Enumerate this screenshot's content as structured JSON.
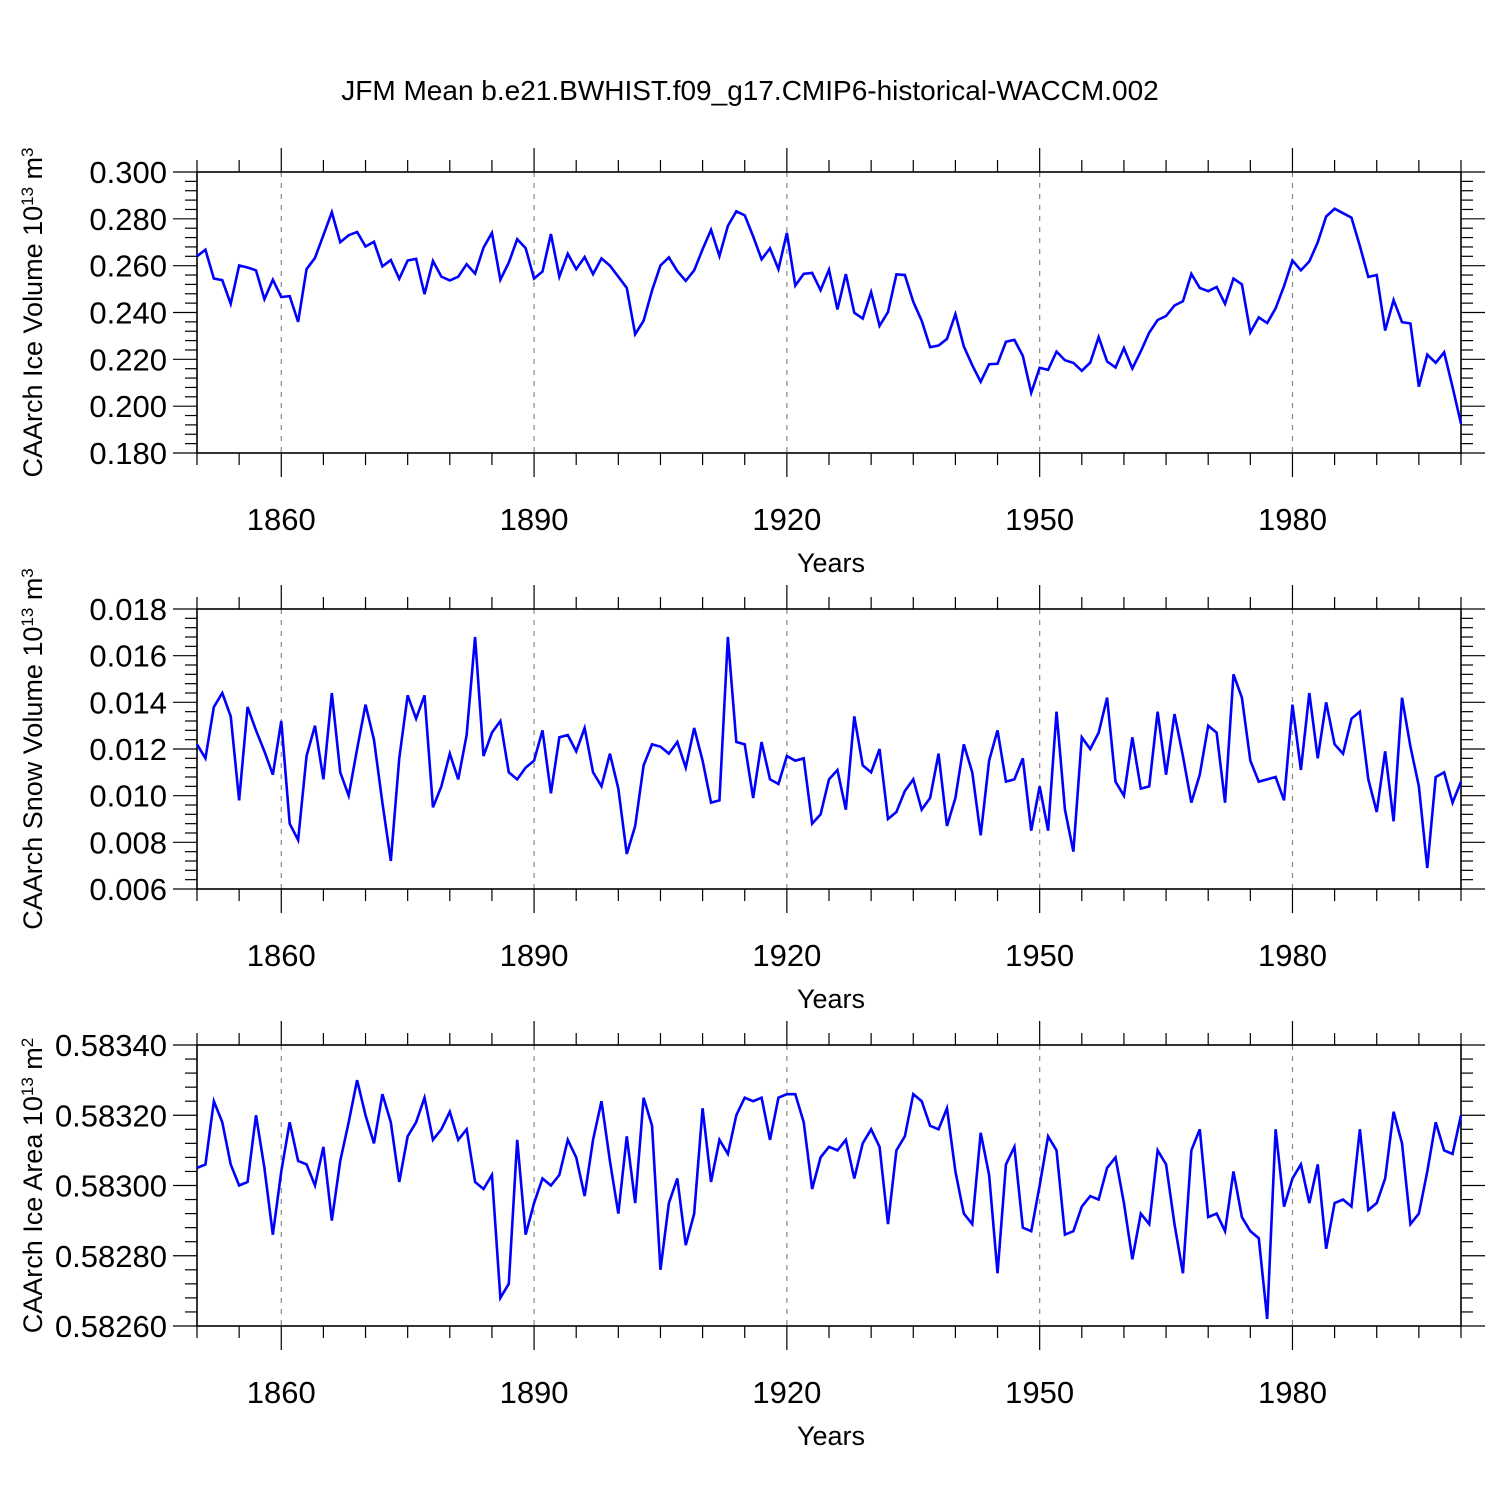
{
  "chart_data": [
    {
      "type": "line",
      "title": "JFM Mean b.e21.BWHIST.f09_g17.CMIP6-historical-WACCM.002",
      "ylabel": "CAArch Ice Volume 10",
      "ylabel_exp": "13",
      "ylabel_unit": " m",
      "ylabel_unit_exp": "3",
      "xlabel": "Years",
      "xlim": [
        1850,
        2000
      ],
      "ylim": [
        0.18,
        0.3
      ],
      "yticks": [
        "0.180",
        "0.200",
        "0.220",
        "0.240",
        "0.260",
        "0.280",
        "0.300"
      ],
      "xticks": [
        "1860",
        "1890",
        "1920",
        "1950",
        "1980"
      ],
      "color": "#0000ff",
      "series": [
        {
          "name": "CAArch Ice Volume",
          "x_start": 1850,
          "values": [
            0.264,
            0.2668,
            0.2545,
            0.2538,
            0.2437,
            0.2601,
            0.2592,
            0.258,
            0.2457,
            0.254,
            0.2466,
            0.247,
            0.236,
            0.2585,
            0.2633,
            0.273,
            0.2828,
            0.27,
            0.273,
            0.2744,
            0.2682,
            0.2702,
            0.2597,
            0.2624,
            0.2544,
            0.2622,
            0.2629,
            0.2478,
            0.262,
            0.2553,
            0.2537,
            0.2553,
            0.2606,
            0.2566,
            0.2677,
            0.274,
            0.254,
            0.2613,
            0.2713,
            0.2675,
            0.2545,
            0.2575,
            0.2735,
            0.2553,
            0.2651,
            0.2585,
            0.2637,
            0.2564,
            0.2631,
            0.26,
            0.2553,
            0.2505,
            0.2307,
            0.2365,
            0.2494,
            0.2601,
            0.2635,
            0.2577,
            0.2535,
            0.258,
            0.267,
            0.2753,
            0.2641,
            0.277,
            0.2832,
            0.2815,
            0.2725,
            0.2627,
            0.2674,
            0.2585,
            0.274,
            0.2515,
            0.2565,
            0.2569,
            0.2495,
            0.2583,
            0.2413,
            0.2564,
            0.2399,
            0.2374,
            0.2487,
            0.2343,
            0.2402,
            0.2563,
            0.256,
            0.2446,
            0.2365,
            0.2252,
            0.2259,
            0.2287,
            0.2393,
            0.2255,
            0.2175,
            0.2104,
            0.2179,
            0.2181,
            0.2275,
            0.2283,
            0.2215,
            0.2057,
            0.2164,
            0.2155,
            0.2233,
            0.2196,
            0.2185,
            0.2151,
            0.2186,
            0.2295,
            0.2191,
            0.2165,
            0.2248,
            0.2161,
            0.2234,
            0.2314,
            0.2368,
            0.2385,
            0.243,
            0.2448,
            0.2565,
            0.2505,
            0.2491,
            0.2509,
            0.2437,
            0.2545,
            0.252,
            0.2315,
            0.2379,
            0.2355,
            0.2418,
            0.2513,
            0.2622,
            0.258,
            0.2618,
            0.27,
            0.281,
            0.2843,
            0.2824,
            0.2805,
            0.2684,
            0.2552,
            0.256,
            0.2323,
            0.2453,
            0.2359,
            0.2353,
            0.2083,
            0.222,
            0.2185,
            0.223,
            0.2081,
            0.1925
          ]
        }
      ]
    },
    {
      "type": "line",
      "title": "",
      "ylabel": "CAArch Snow Volume 10",
      "ylabel_exp": "13",
      "ylabel_unit": " m",
      "ylabel_unit_exp": "3",
      "xlabel": "Years",
      "xlim": [
        1850,
        2000
      ],
      "ylim": [
        0.006,
        0.018
      ],
      "yticks": [
        "0.006",
        "0.008",
        "0.010",
        "0.012",
        "0.014",
        "0.016",
        "0.018"
      ],
      "xticks": [
        "1860",
        "1890",
        "1920",
        "1950",
        "1980"
      ],
      "color": "#0000ff",
      "series": [
        {
          "name": "CAArch Snow Volume",
          "x_start": 1850,
          "values": [
            0.0122,
            0.0116,
            0.0138,
            0.0144,
            0.0134,
            0.0098,
            0.0138,
            0.0128,
            0.0119,
            0.0109,
            0.0132,
            0.0088,
            0.0081,
            0.0117,
            0.013,
            0.0107,
            0.0144,
            0.011,
            0.01,
            0.012,
            0.0139,
            0.0124,
            0.0097,
            0.0072,
            0.0116,
            0.0143,
            0.0133,
            0.0143,
            0.0095,
            0.0104,
            0.0118,
            0.0107,
            0.0126,
            0.0168,
            0.0117,
            0.0127,
            0.0132,
            0.011,
            0.0107,
            0.0112,
            0.0115,
            0.0128,
            0.0101,
            0.0125,
            0.0126,
            0.0119,
            0.0129,
            0.011,
            0.0104,
            0.0118,
            0.0103,
            0.0075,
            0.0087,
            0.0113,
            0.0122,
            0.0121,
            0.0118,
            0.0123,
            0.0112,
            0.0129,
            0.0115,
            0.0097,
            0.0098,
            0.0168,
            0.0123,
            0.0122,
            0.0099,
            0.0123,
            0.0107,
            0.0105,
            0.0117,
            0.0115,
            0.0116,
            0.0088,
            0.0092,
            0.0107,
            0.0111,
            0.0094,
            0.0134,
            0.0113,
            0.011,
            0.012,
            0.009,
            0.0093,
            0.0102,
            0.0107,
            0.0094,
            0.0099,
            0.0118,
            0.0087,
            0.0099,
            0.0122,
            0.011,
            0.0083,
            0.0115,
            0.0128,
            0.0106,
            0.0107,
            0.0116,
            0.0085,
            0.0104,
            0.0085,
            0.0136,
            0.0094,
            0.0076,
            0.0125,
            0.012,
            0.0127,
            0.0142,
            0.0106,
            0.01,
            0.0125,
            0.0103,
            0.0104,
            0.0136,
            0.0109,
            0.0135,
            0.0117,
            0.0097,
            0.0109,
            0.013,
            0.0127,
            0.0097,
            0.0152,
            0.0142,
            0.0115,
            0.0106,
            0.0107,
            0.0108,
            0.0098,
            0.0139,
            0.0111,
            0.0144,
            0.0116,
            0.014,
            0.0122,
            0.0118,
            0.0133,
            0.0136,
            0.0107,
            0.0093,
            0.0119,
            0.0089,
            0.0142,
            0.0121,
            0.0104,
            0.0069,
            0.0108,
            0.011,
            0.0097,
            0.0106
          ]
        }
      ]
    },
    {
      "type": "line",
      "title": "",
      "ylabel": "CAArch Ice Area 10",
      "ylabel_exp": "13",
      "ylabel_unit": " m",
      "ylabel_unit_exp": "2",
      "xlabel": "Years",
      "xlim": [
        1850,
        2000
      ],
      "ylim": [
        0.5826,
        0.5834
      ],
      "yticks": [
        "0.58260",
        "0.58280",
        "0.58300",
        "0.58320",
        "0.58340"
      ],
      "xticks": [
        "1860",
        "1890",
        "1920",
        "1950",
        "1980"
      ],
      "color": "#0000ff",
      "series": [
        {
          "name": "CAArch Ice Area",
          "x_start": 1850,
          "values": [
            0.58305,
            0.58306,
            0.58324,
            0.58318,
            0.58306,
            0.583,
            0.58301,
            0.5832,
            0.58305,
            0.58286,
            0.58304,
            0.58318,
            0.58307,
            0.58306,
            0.583,
            0.58311,
            0.5829,
            0.58307,
            0.58318,
            0.5833,
            0.5832,
            0.58312,
            0.58326,
            0.58318,
            0.58301,
            0.58314,
            0.58318,
            0.58325,
            0.58313,
            0.58316,
            0.58321,
            0.58313,
            0.58316,
            0.58301,
            0.58299,
            0.58303,
            0.58268,
            0.58272,
            0.58313,
            0.58286,
            0.58295,
            0.58302,
            0.583,
            0.58303,
            0.58313,
            0.58308,
            0.58297,
            0.58313,
            0.58324,
            0.58307,
            0.58292,
            0.58314,
            0.58295,
            0.58325,
            0.58317,
            0.58276,
            0.58295,
            0.58302,
            0.58283,
            0.58292,
            0.58322,
            0.58301,
            0.58313,
            0.58309,
            0.5832,
            0.58325,
            0.58324,
            0.58325,
            0.58313,
            0.58325,
            0.58326,
            0.58326,
            0.58318,
            0.58299,
            0.58308,
            0.58311,
            0.5831,
            0.58313,
            0.58302,
            0.58312,
            0.58316,
            0.58311,
            0.58289,
            0.5831,
            0.58314,
            0.58326,
            0.58324,
            0.58317,
            0.58316,
            0.58322,
            0.58304,
            0.58292,
            0.58289,
            0.58315,
            0.58303,
            0.58275,
            0.58306,
            0.58311,
            0.58288,
            0.58287,
            0.583,
            0.58314,
            0.5831,
            0.58286,
            0.58287,
            0.58294,
            0.58297,
            0.58296,
            0.58305,
            0.58308,
            0.58295,
            0.58279,
            0.58292,
            0.58289,
            0.5831,
            0.58306,
            0.58289,
            0.58275,
            0.5831,
            0.58316,
            0.58291,
            0.58292,
            0.58287,
            0.58304,
            0.58291,
            0.58287,
            0.58285,
            0.58262,
            0.58316,
            0.58294,
            0.58302,
            0.58306,
            0.58295,
            0.58306,
            0.58282,
            0.58295,
            0.58296,
            0.58294,
            0.58316,
            0.58293,
            0.58295,
            0.58302,
            0.58321,
            0.58312,
            0.58289,
            0.58292,
            0.58304,
            0.58318,
            0.5831,
            0.58309,
            0.5832
          ]
        }
      ]
    }
  ]
}
